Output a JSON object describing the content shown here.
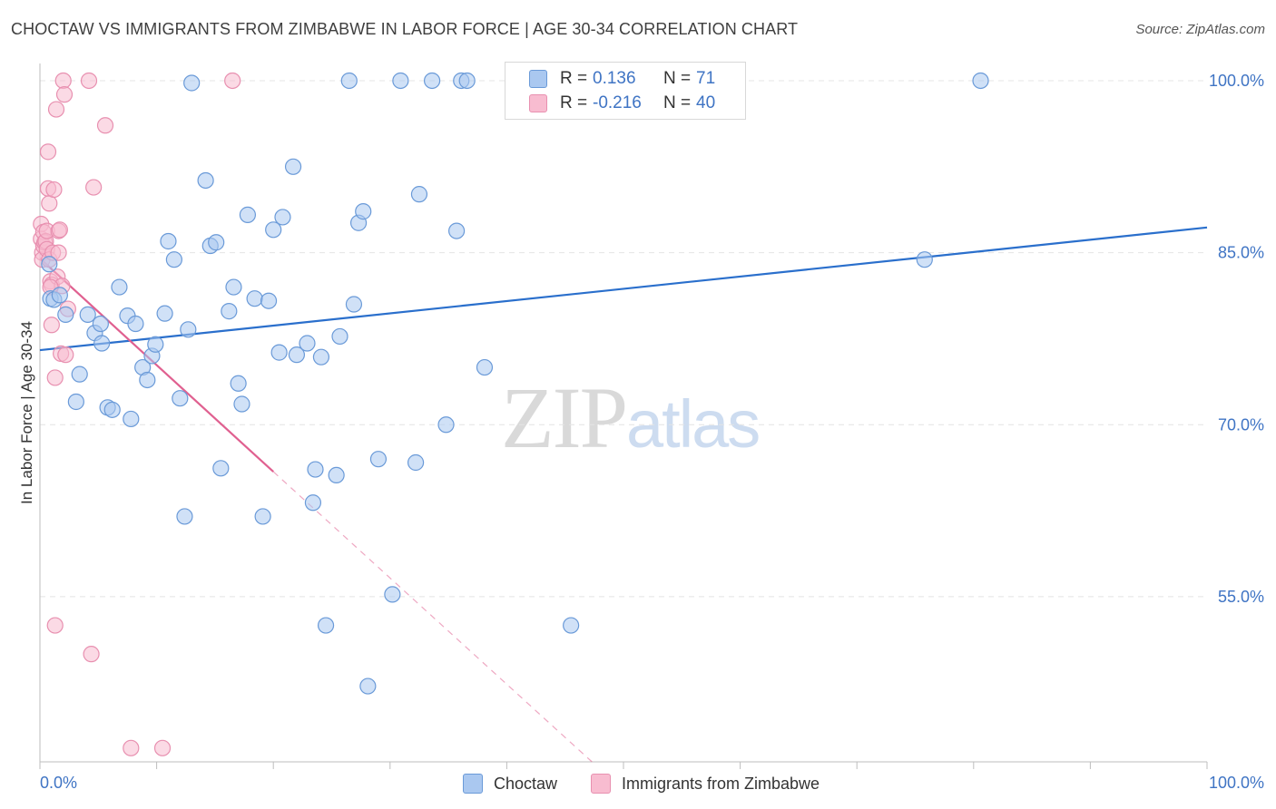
{
  "title": "CHOCTAW VS IMMIGRANTS FROM ZIMBABWE IN LABOR FORCE | AGE 30-34 CORRELATION CHART",
  "source": "Source: ZipAtlas.com",
  "watermark": {
    "zip": "ZIP",
    "atlas": "atlas"
  },
  "legend": {
    "rows": [
      {
        "r_label": "R =",
        "r_value": "0.136",
        "n_label": "N =",
        "n_value": "71"
      },
      {
        "r_label": "R =",
        "r_value": "-0.216",
        "n_label": "N =",
        "n_value": "40"
      }
    ]
  },
  "colors": {
    "choctaw_fill": "#aac8f0",
    "choctaw_stroke": "#6a9ad8",
    "choctaw_line": "#2a6fcc",
    "zim_fill": "#f8bcd0",
    "zim_stroke": "#e890b0",
    "zim_line": "#e06090",
    "grid": "#e4e4e4",
    "axis_label": "#3f74c4"
  },
  "chart_data": {
    "type": "scatter",
    "title": "CHOCTAW VS IMMIGRANTS FROM ZIMBABWE IN LABOR FORCE | AGE 30-34 CORRELATION CHART",
    "xlabel": "",
    "ylabel": "In Labor Force | Age 30-34",
    "xlim": [
      0,
      100
    ],
    "ylim": [
      40.6,
      101.5
    ],
    "x_tick_labels": [
      "0.0%",
      "100.0%"
    ],
    "y_ticks": [
      55,
      70,
      85,
      100
    ],
    "y_tick_labels": [
      "55.0%",
      "70.0%",
      "85.0%",
      "100.0%"
    ],
    "legend_position": "top-center",
    "series": [
      {
        "name": "Choctaw",
        "R": 0.136,
        "N": 71,
        "trend": {
          "x": [
            0,
            100
          ],
          "y": [
            76.5,
            87.2
          ],
          "style": "solid"
        },
        "points": [
          [
            0.8,
            84.0
          ],
          [
            0.9,
            81.0
          ],
          [
            1.2,
            80.9
          ],
          [
            1.7,
            81.3
          ],
          [
            2.2,
            79.6
          ],
          [
            3.1,
            72.0
          ],
          [
            3.4,
            74.4
          ],
          [
            4.1,
            79.6
          ],
          [
            4.7,
            78.0
          ],
          [
            5.2,
            78.8
          ],
          [
            5.3,
            77.1
          ],
          [
            5.8,
            71.5
          ],
          [
            6.2,
            71.3
          ],
          [
            6.8,
            82.0
          ],
          [
            7.5,
            79.5
          ],
          [
            7.8,
            70.5
          ],
          [
            8.2,
            78.8
          ],
          [
            8.8,
            75.0
          ],
          [
            9.2,
            73.9
          ],
          [
            9.6,
            76.0
          ],
          [
            9.9,
            77.0
          ],
          [
            10.7,
            79.7
          ],
          [
            11.0,
            86.0
          ],
          [
            11.5,
            84.4
          ],
          [
            12.0,
            72.3
          ],
          [
            12.4,
            62.0
          ],
          [
            12.7,
            78.3
          ],
          [
            13.0,
            99.8
          ],
          [
            14.2,
            91.3
          ],
          [
            14.6,
            85.6
          ],
          [
            15.1,
            85.9
          ],
          [
            15.5,
            66.2
          ],
          [
            16.2,
            79.9
          ],
          [
            16.6,
            82.0
          ],
          [
            17.0,
            73.6
          ],
          [
            17.3,
            71.8
          ],
          [
            17.8,
            88.3
          ],
          [
            18.4,
            81.0
          ],
          [
            19.1,
            62.0
          ],
          [
            19.6,
            80.8
          ],
          [
            20.0,
            87.0
          ],
          [
            20.5,
            76.3
          ],
          [
            20.8,
            88.1
          ],
          [
            21.7,
            92.5
          ],
          [
            22.0,
            76.1
          ],
          [
            22.9,
            77.1
          ],
          [
            23.4,
            63.2
          ],
          [
            23.6,
            66.1
          ],
          [
            24.1,
            75.9
          ],
          [
            24.5,
            52.5
          ],
          [
            25.4,
            65.6
          ],
          [
            25.7,
            77.7
          ],
          [
            26.5,
            100.0
          ],
          [
            26.9,
            80.5
          ],
          [
            27.3,
            87.6
          ],
          [
            27.7,
            88.6
          ],
          [
            28.1,
            47.2
          ],
          [
            29.0,
            67.0
          ],
          [
            30.2,
            55.2
          ],
          [
            30.9,
            100.0
          ],
          [
            32.2,
            66.7
          ],
          [
            32.5,
            90.1
          ],
          [
            33.6,
            100.0
          ],
          [
            34.8,
            70.0
          ],
          [
            35.7,
            86.9
          ],
          [
            36.1,
            100.0
          ],
          [
            36.6,
            100.0
          ],
          [
            38.1,
            75.0
          ],
          [
            45.5,
            52.5
          ],
          [
            75.8,
            84.4
          ],
          [
            80.6,
            100.0
          ]
        ]
      },
      {
        "name": "Immigrants from Zimbabwe",
        "R": -0.216,
        "N": 40,
        "trend": {
          "x": [
            0,
            20
          ],
          "y": [
            84.5,
            65.9
          ],
          "style": "solid",
          "extended": {
            "x": [
              20,
              47.3
            ],
            "y": [
              65.9,
              40.6
            ],
            "style": "dashed"
          }
        },
        "points": [
          [
            0.1,
            87.5
          ],
          [
            0.1,
            86.2
          ],
          [
            0.2,
            85.0
          ],
          [
            0.2,
            84.4
          ],
          [
            0.3,
            85.6
          ],
          [
            0.3,
            86.8
          ],
          [
            0.4,
            85.9
          ],
          [
            0.5,
            86.0
          ],
          [
            0.6,
            86.9
          ],
          [
            0.6,
            85.3
          ],
          [
            0.7,
            93.8
          ],
          [
            0.7,
            90.6
          ],
          [
            0.8,
            89.3
          ],
          [
            0.8,
            84.4
          ],
          [
            0.9,
            82.5
          ],
          [
            1.0,
            82.2
          ],
          [
            1.0,
            78.7
          ],
          [
            1.1,
            85.0
          ],
          [
            1.2,
            90.5
          ],
          [
            1.3,
            52.5
          ],
          [
            1.3,
            74.1
          ],
          [
            1.4,
            97.5
          ],
          [
            1.5,
            82.9
          ],
          [
            1.6,
            86.9
          ],
          [
            1.6,
            85.0
          ],
          [
            1.7,
            87.0
          ],
          [
            1.8,
            76.2
          ],
          [
            1.9,
            82.1
          ],
          [
            2.0,
            100.0
          ],
          [
            2.1,
            98.8
          ],
          [
            2.2,
            76.1
          ],
          [
            2.4,
            80.1
          ],
          [
            4.2,
            100.0
          ],
          [
            4.4,
            50.0
          ],
          [
            4.6,
            90.7
          ],
          [
            5.6,
            96.1
          ],
          [
            7.8,
            41.8
          ],
          [
            10.5,
            41.8
          ],
          [
            16.5,
            100.0
          ],
          [
            0.9,
            82.0
          ]
        ]
      }
    ]
  }
}
